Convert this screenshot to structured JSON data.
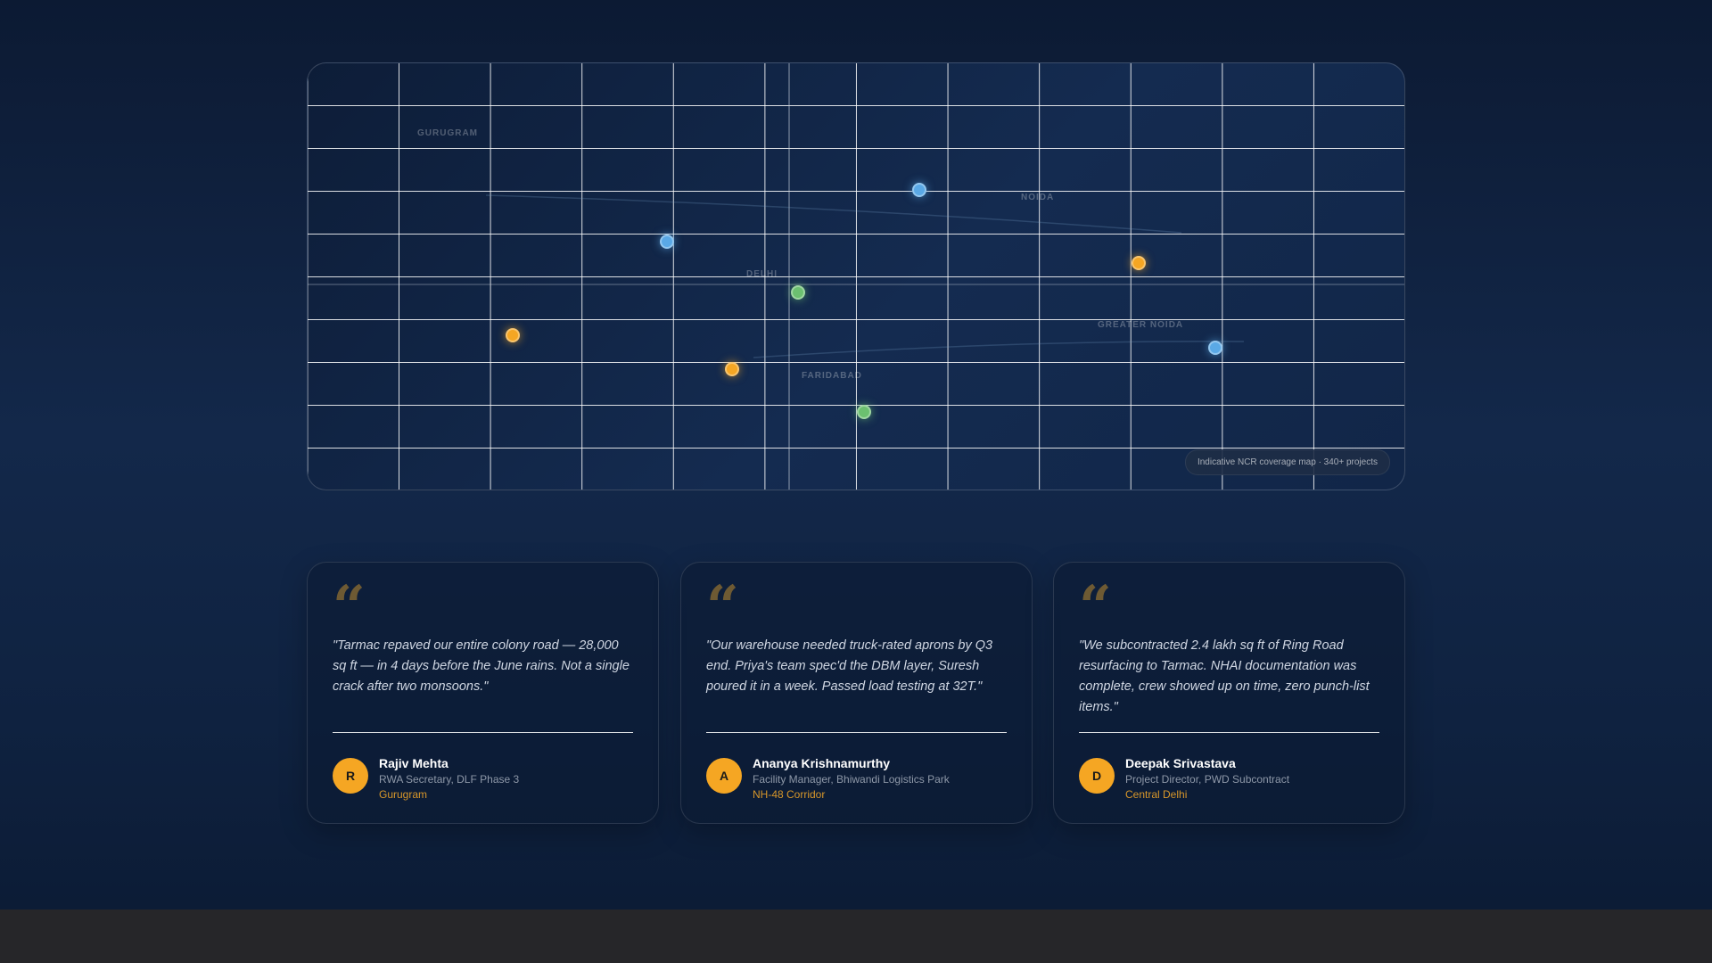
{
  "map": {
    "areas": {
      "gurugram": "GURUGRAM",
      "noida": "NOIDA",
      "delhi": "DELHI",
      "greater_noida": "GREATER NOIDA",
      "faridabad": "FARIDABAD"
    },
    "caption": "Indicative NCR coverage map · 340+ projects",
    "marker_colors": {
      "orange": "#f5a623",
      "blue": "#5aa9e6",
      "green": "#6cc070"
    }
  },
  "testimonials": [
    {
      "quote": "\"Tarmac repaved our entire colony road — 28,000 sq ft — in 4 days before the June rains. Not a single crack after two monsoons.\"",
      "initial": "R",
      "name": "Rajiv Mehta",
      "role": "RWA Secretary, DLF Phase 3",
      "location": "Gurugram"
    },
    {
      "quote": "\"Our warehouse needed truck-rated aprons by Q3 end. Priya's team spec'd the DBM layer, Suresh poured it in a week. Passed load testing at 32T.\"",
      "initial": "A",
      "name": "Ananya Krishnamurthy",
      "role": "Facility Manager, Bhiwandi Logistics Park",
      "location": "NH-48 Corridor"
    },
    {
      "quote": "\"We subcontracted 2.4 lakh sq ft of Ring Road resurfacing to Tarmac. NHAI documentation was complete, crew showed up on time, zero punch-list items.\"",
      "initial": "D",
      "name": "Deepak Srivastava",
      "role": "Project Director, PWD Subcontract",
      "location": "Central Delhi"
    }
  ],
  "accent_color": "#f5a623"
}
